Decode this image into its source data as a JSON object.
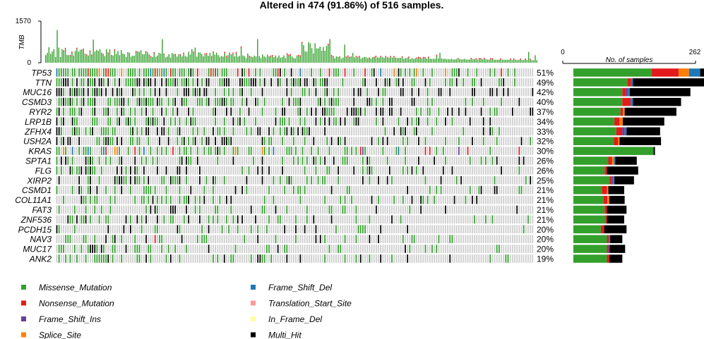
{
  "chart_data": {
    "type": "oncoplot",
    "title": "Altered in 474 (91.86%) of 516 samples.",
    "tmb": {
      "ylabel": "TMB",
      "ymax_label": "1570",
      "ymin_label": "0",
      "ylim": [
        0,
        1570
      ]
    },
    "samples_axis": {
      "label": "No. of samples",
      "min_label": "0",
      "max_label": "262",
      "xlim": [
        0,
        262
      ]
    },
    "genes": [
      {
        "name": "TP53",
        "percent": "51%",
        "pct": 51,
        "counts": [
          {
            "type": "Missense_Mutation",
            "value": 168
          },
          {
            "type": "Nonsense_Mutation",
            "value": 58
          },
          {
            "type": "Splice_Site",
            "value": 22
          },
          {
            "type": "Frame_Shift_Del",
            "value": 24
          },
          {
            "type": "Multi_Hit",
            "value": 21
          }
        ]
      },
      {
        "name": "TTN",
        "percent": "49%",
        "pct": 49,
        "counts": [
          {
            "type": "Missense_Mutation",
            "value": 116
          },
          {
            "type": "Nonsense_Mutation",
            "value": 8
          },
          {
            "type": "Frame_Shift_Del",
            "value": 4
          },
          {
            "type": "Multi_Hit",
            "value": 155
          }
        ]
      },
      {
        "name": "MUC16",
        "percent": "42%",
        "pct": 42,
        "counts": [
          {
            "type": "Missense_Mutation",
            "value": 105
          },
          {
            "type": "Nonsense_Mutation",
            "value": 8
          },
          {
            "type": "Frame_Shift_Ins",
            "value": 4
          },
          {
            "type": "Frame_Shift_Del",
            "value": 4
          },
          {
            "type": "Multi_Hit",
            "value": 130
          }
        ]
      },
      {
        "name": "CSMD3",
        "percent": "40%",
        "pct": 40,
        "counts": [
          {
            "type": "Missense_Mutation",
            "value": 105
          },
          {
            "type": "Nonsense_Mutation",
            "value": 18
          },
          {
            "type": "Frame_Shift_Del",
            "value": 5
          },
          {
            "type": "Multi_Hit",
            "value": 103
          }
        ]
      },
      {
        "name": "RYR2",
        "percent": "37%",
        "pct": 37,
        "counts": [
          {
            "type": "Missense_Mutation",
            "value": 101
          },
          {
            "type": "Nonsense_Mutation",
            "value": 5
          },
          {
            "type": "Splice_Site",
            "value": 4
          },
          {
            "type": "Multi_Hit",
            "value": 111
          }
        ]
      },
      {
        "name": "LRP1B",
        "percent": "34%",
        "pct": 34,
        "counts": [
          {
            "type": "Missense_Mutation",
            "value": 88
          },
          {
            "type": "Nonsense_Mutation",
            "value": 11
          },
          {
            "type": "Splice_Site",
            "value": 7
          },
          {
            "type": "Multi_Hit",
            "value": 89
          }
        ]
      },
      {
        "name": "ZFHX4",
        "percent": "33%",
        "pct": 33,
        "counts": [
          {
            "type": "Missense_Mutation",
            "value": 92
          },
          {
            "type": "Nonsense_Mutation",
            "value": 13
          },
          {
            "type": "Frame_Shift_Ins",
            "value": 5
          },
          {
            "type": "Frame_Shift_Del",
            "value": 4
          },
          {
            "type": "Multi_Hit",
            "value": 72
          }
        ]
      },
      {
        "name": "USH2A",
        "percent": "32%",
        "pct": 32,
        "counts": [
          {
            "type": "Missense_Mutation",
            "value": 87
          },
          {
            "type": "Nonsense_Mutation",
            "value": 9
          },
          {
            "type": "Splice_Site",
            "value": 3
          },
          {
            "type": "Multi_Hit",
            "value": 89
          }
        ]
      },
      {
        "name": "KRAS",
        "percent": "30%",
        "pct": 30,
        "counts": [
          {
            "type": "Missense_Mutation",
            "value": 172
          },
          {
            "type": "Multi_Hit",
            "value": 3
          }
        ]
      },
      {
        "name": "SPTA1",
        "percent": "26%",
        "pct": 26,
        "counts": [
          {
            "type": "Missense_Mutation",
            "value": 75
          },
          {
            "type": "Nonsense_Mutation",
            "value": 8
          },
          {
            "type": "Splice_Site",
            "value": 4
          },
          {
            "type": "Frame_Shift_Del",
            "value": 3
          },
          {
            "type": "Multi_Hit",
            "value": 46
          }
        ]
      },
      {
        "name": "FLG",
        "percent": "26%",
        "pct": 26,
        "counts": [
          {
            "type": "Missense_Mutation",
            "value": 67
          },
          {
            "type": "Nonsense_Mutation",
            "value": 5
          },
          {
            "type": "Multi_Hit",
            "value": 67
          }
        ]
      },
      {
        "name": "XIRP2",
        "percent": "25%",
        "pct": 25,
        "counts": [
          {
            "type": "Missense_Mutation",
            "value": 78
          },
          {
            "type": "Nonsense_Mutation",
            "value": 4
          },
          {
            "type": "Frame_Shift_Ins",
            "value": 3
          },
          {
            "type": "Frame_Shift_Del",
            "value": 3
          },
          {
            "type": "Multi_Hit",
            "value": 42
          }
        ]
      },
      {
        "name": "CSMD1",
        "percent": "21%",
        "pct": 21,
        "counts": [
          {
            "type": "Missense_Mutation",
            "value": 61
          },
          {
            "type": "Nonsense_Mutation",
            "value": 11
          },
          {
            "type": "Splice_Site",
            "value": 3
          },
          {
            "type": "Multi_Hit",
            "value": 34
          }
        ]
      },
      {
        "name": "COL11A1",
        "percent": "21%",
        "pct": 21,
        "counts": [
          {
            "type": "Missense_Mutation",
            "value": 65
          },
          {
            "type": "Nonsense_Mutation",
            "value": 8
          },
          {
            "type": "Splice_Site",
            "value": 4
          },
          {
            "type": "Multi_Hit",
            "value": 33
          }
        ]
      },
      {
        "name": "FAT3",
        "percent": "21%",
        "pct": 21,
        "counts": [
          {
            "type": "Missense_Mutation",
            "value": 67
          },
          {
            "type": "Nonsense_Mutation",
            "value": 5
          },
          {
            "type": "Multi_Hit",
            "value": 42
          }
        ]
      },
      {
        "name": "ZNF536",
        "percent": "21%",
        "pct": 21,
        "counts": [
          {
            "type": "Missense_Mutation",
            "value": 69
          },
          {
            "type": "Nonsense_Mutation",
            "value": 3
          },
          {
            "type": "Multi_Hit",
            "value": 37
          }
        ]
      },
      {
        "name": "PCDH15",
        "percent": "20%",
        "pct": 20,
        "counts": [
          {
            "type": "Missense_Mutation",
            "value": 59
          },
          {
            "type": "Nonsense_Mutation",
            "value": 7
          },
          {
            "type": "Multi_Hit",
            "value": 48
          }
        ]
      },
      {
        "name": "NAV3",
        "percent": "20%",
        "pct": 20,
        "counts": [
          {
            "type": "Missense_Mutation",
            "value": 72
          },
          {
            "type": "Nonsense_Mutation",
            "value": 4
          },
          {
            "type": "Frame_Shift_Del",
            "value": 3
          },
          {
            "type": "Multi_Hit",
            "value": 26
          }
        ]
      },
      {
        "name": "MUC17",
        "percent": "20%",
        "pct": 20,
        "counts": [
          {
            "type": "Missense_Mutation",
            "value": 72
          },
          {
            "type": "Nonsense_Mutation",
            "value": 3
          },
          {
            "type": "Frame_Shift_Ins",
            "value": 3
          },
          {
            "type": "Multi_Hit",
            "value": 33
          }
        ]
      },
      {
        "name": "ANK2",
        "percent": "19%",
        "pct": 19,
        "counts": [
          {
            "type": "Missense_Mutation",
            "value": 72
          },
          {
            "type": "Nonsense_Mutation",
            "value": 5
          },
          {
            "type": "Multi_Hit",
            "value": 28
          }
        ]
      }
    ],
    "legend": [
      {
        "label": "Missense_Mutation",
        "color": "#33a02c"
      },
      {
        "label": "Nonsense_Mutation",
        "color": "#e31a1c"
      },
      {
        "label": "Frame_Shift_Ins",
        "color": "#6a3d9a"
      },
      {
        "label": "Splice_Site",
        "color": "#ff7f00"
      },
      {
        "label": "Frame_Shift_Del",
        "color": "#1f78b4"
      },
      {
        "label": "Translation_Start_Site",
        "color": "#fb9a99"
      },
      {
        "label": "In_Frame_Del",
        "color": "#ffff99"
      },
      {
        "label": "Multi_Hit",
        "color": "#000000"
      }
    ],
    "colors": {
      "Missense_Mutation": "#33a02c",
      "Nonsense_Mutation": "#e31a1c",
      "Frame_Shift_Ins": "#6a3d9a",
      "Splice_Site": "#ff7f00",
      "Frame_Shift_Del": "#1f78b4",
      "Translation_Start_Site": "#fb9a99",
      "In_Frame_Del": "#ffff99",
      "Multi_Hit": "#000000",
      "background": "#cccccc"
    }
  }
}
